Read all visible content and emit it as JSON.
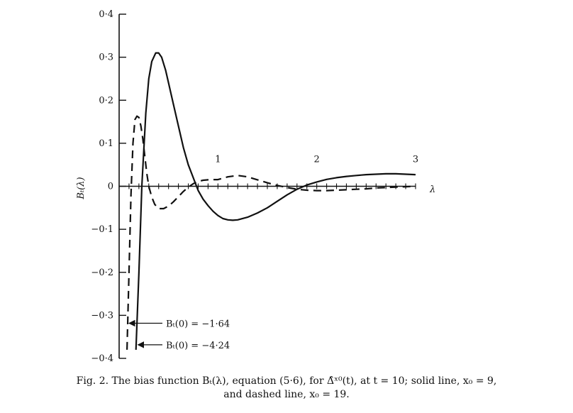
{
  "caption": {
    "line1": "Fig. 2. The bias function Bₜ(λ), equation (5·6), for Δ̂ˣ⁰(t), at t = 10; solid line, x₀ = 9,",
    "line2": "and dashed line, x₀ = 19."
  },
  "chart_data": {
    "type": "line",
    "title": "",
    "xlabel": "λ",
    "ylabel": "Bₜ(λ)",
    "xlim": [
      0,
      3
    ],
    "ylim": [
      -0.4,
      0.4
    ],
    "y_ticks": [
      {
        "value": 0.4,
        "label": "0·4"
      },
      {
        "value": 0.3,
        "label": "0·3"
      },
      {
        "value": 0.2,
        "label": "0·2"
      },
      {
        "value": 0.1,
        "label": "0·1"
      },
      {
        "value": 0,
        "label": "0"
      },
      {
        "value": -0.1,
        "label": "−0·1"
      },
      {
        "value": -0.2,
        "label": "−0·2"
      },
      {
        "value": -0.3,
        "label": "−0·3"
      },
      {
        "value": -0.4,
        "label": "−0·4"
      }
    ],
    "x_ticks": [
      {
        "value": 1,
        "label": "1"
      },
      {
        "value": 2,
        "label": "2"
      },
      {
        "value": 3,
        "label": "3"
      }
    ],
    "x_minor_step": 0.1,
    "grid": false,
    "series": [
      {
        "style": "solid",
        "x": [
          0.17,
          0.2,
          0.23,
          0.27,
          0.3,
          0.33,
          0.37,
          0.4,
          0.43,
          0.47,
          0.5,
          0.55,
          0.6,
          0.65,
          0.7,
          0.75,
          0.8,
          0.85,
          0.9,
          0.95,
          1.0,
          1.05,
          1.1,
          1.15,
          1.2,
          1.3,
          1.4,
          1.5,
          1.6,
          1.7,
          1.8,
          1.9,
          2.0,
          2.1,
          2.2,
          2.3,
          2.4,
          2.5,
          2.6,
          2.7,
          2.8,
          2.9,
          3.0
        ],
        "y": [
          -0.38,
          -0.2,
          0.0,
          0.17,
          0.25,
          0.29,
          0.31,
          0.31,
          0.3,
          0.27,
          0.24,
          0.19,
          0.14,
          0.09,
          0.05,
          0.02,
          -0.01,
          -0.03,
          -0.045,
          -0.058,
          -0.068,
          -0.075,
          -0.078,
          -0.079,
          -0.078,
          -0.072,
          -0.062,
          -0.05,
          -0.035,
          -0.02,
          -0.007,
          0.003,
          0.01,
          0.016,
          0.02,
          0.023,
          0.025,
          0.027,
          0.028,
          0.029,
          0.029,
          0.028,
          0.027
        ]
      },
      {
        "style": "dashed",
        "x": [
          0.08,
          0.1,
          0.12,
          0.14,
          0.16,
          0.18,
          0.2,
          0.22,
          0.24,
          0.26,
          0.28,
          0.3,
          0.33,
          0.36,
          0.4,
          0.45,
          0.5,
          0.55,
          0.6,
          0.65,
          0.7,
          0.75,
          0.8,
          0.85,
          0.9,
          0.95,
          1.0,
          1.1,
          1.2,
          1.3,
          1.4,
          1.5,
          1.6,
          1.7,
          1.8,
          1.9,
          2.0,
          2.1,
          2.2,
          2.3,
          2.4,
          2.5,
          2.6,
          2.7,
          2.8,
          2.9,
          3.0
        ],
        "y": [
          -0.38,
          -0.2,
          -0.02,
          0.1,
          0.155,
          0.163,
          0.16,
          0.14,
          0.11,
          0.07,
          0.03,
          0.0,
          -0.025,
          -0.042,
          -0.052,
          -0.052,
          -0.046,
          -0.036,
          -0.024,
          -0.012,
          -0.002,
          0.006,
          0.011,
          0.014,
          0.015,
          0.0155,
          0.0155,
          0.022,
          0.025,
          0.022,
          0.015,
          0.008,
          0.002,
          -0.003,
          -0.007,
          -0.009,
          -0.01,
          -0.01,
          -0.009,
          -0.008,
          -0.007,
          -0.006,
          -0.004,
          -0.003,
          -0.002,
          -0.001,
          0.0
        ]
      }
    ],
    "annotations": [
      {
        "text": "Bₜ(0) = −1·64",
        "x": 0.08,
        "y": -0.325,
        "target_series": "dashed"
      },
      {
        "text": "Bₜ(0) = −4·24",
        "x": 0.17,
        "y": -0.375,
        "target_series": "solid"
      }
    ]
  }
}
